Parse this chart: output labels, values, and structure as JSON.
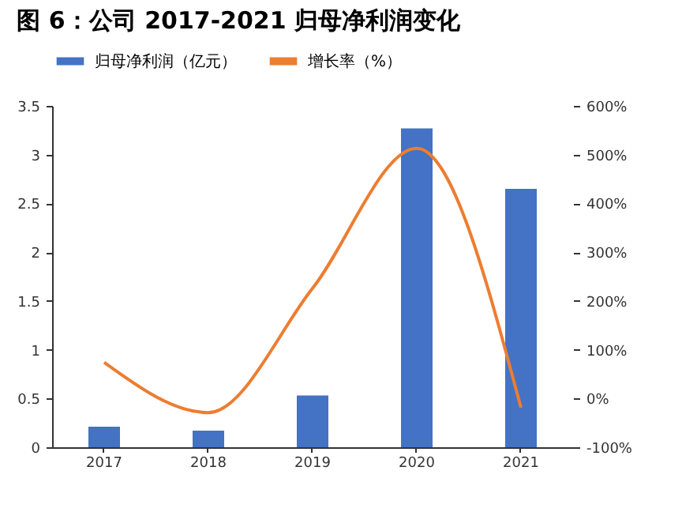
{
  "chart_data": {
    "type": "bar",
    "title": "图 6：公司 2017-2021 归母净利润变化",
    "categories": [
      "2017",
      "2018",
      "2019",
      "2020",
      "2021"
    ],
    "series": [
      {
        "name": "归母净利润（亿元）",
        "type": "bar",
        "color": "#4472c4",
        "values": [
          0.21,
          0.17,
          0.53,
          3.27,
          2.65
        ]
      },
      {
        "name": "增长率（%）",
        "type": "line",
        "axis": "y2",
        "color": "#ed7d31",
        "values": [
          74,
          -29,
          226,
          513,
          -19
        ]
      }
    ],
    "ylim": [
      0,
      3.5
    ],
    "yticks": [
      0,
      0.5,
      1,
      1.5,
      2,
      2.5,
      3,
      3.5
    ],
    "y2lim": [
      -100,
      600
    ],
    "y2ticks": [
      {
        "value": -100,
        "label": "-100%"
      },
      {
        "value": 0,
        "label": "0%"
      },
      {
        "value": 100,
        "label": "100%"
      },
      {
        "value": 200,
        "label": "200%"
      },
      {
        "value": 300,
        "label": "300%"
      },
      {
        "value": 400,
        "label": "400%"
      },
      {
        "value": 500,
        "label": "500%"
      },
      {
        "value": 600,
        "label": "600%"
      }
    ],
    "legend": "top",
    "grid": false
  }
}
